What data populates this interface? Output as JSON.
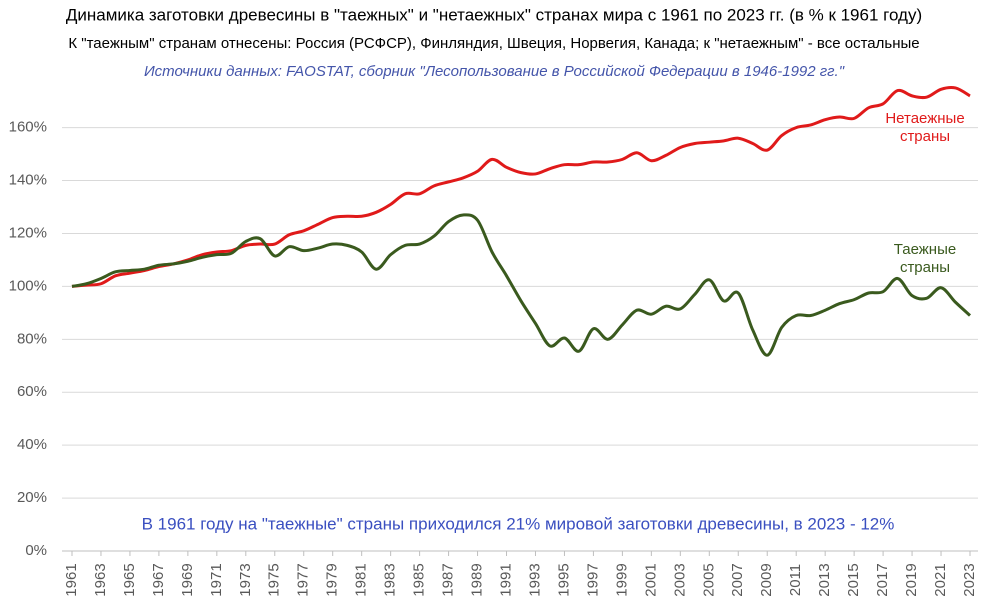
{
  "chart_data": {
    "type": "line",
    "title": "Динамика заготовки древесины в \"таежных\" и \"нетаежных\" странах мира с 1961 по 2023 гг. (в % к 1961 году)",
    "subtitle": "К \"таежным\" странам отнесены: Россия (РСФСР), Финляндия, Швеция, Норвегия, Канада; к \"нетаежным\" - все остальные",
    "source": "Источники данных: FAOSTAT, сборник \"Лесопользование в Российской Федерации в 1946-1992 гг.\"",
    "annotation": "В 1961 году на \"таежные\" страны приходился 21% мировой заготовки древесины, в 2023 - 12%",
    "x": [
      1961,
      1962,
      1963,
      1964,
      1965,
      1966,
      1967,
      1968,
      1969,
      1970,
      1971,
      1972,
      1973,
      1974,
      1975,
      1976,
      1977,
      1978,
      1979,
      1980,
      1981,
      1982,
      1983,
      1984,
      1985,
      1986,
      1987,
      1988,
      1989,
      1990,
      1991,
      1992,
      1993,
      1994,
      1995,
      1996,
      1997,
      1998,
      1999,
      2000,
      2001,
      2002,
      2003,
      2004,
      2005,
      2006,
      2007,
      2008,
      2009,
      2010,
      2011,
      2012,
      2013,
      2014,
      2015,
      2016,
      2017,
      2018,
      2019,
      2020,
      2021,
      2022,
      2023
    ],
    "series": [
      {
        "name": "Нетаежные страны",
        "color": "#e01a1a",
        "values": [
          100,
          100.5,
          101,
          104,
          105,
          106,
          107.5,
          108.5,
          110,
          112,
          113,
          113.5,
          115.5,
          116,
          116,
          119.5,
          121,
          123.5,
          126,
          126.5,
          126.5,
          128,
          131,
          135,
          135,
          138,
          139.5,
          141,
          143.5,
          148,
          145,
          143,
          142.5,
          144.5,
          146,
          146,
          147,
          147,
          148,
          150.5,
          147.5,
          149.5,
          152.5,
          154,
          154.5,
          155,
          156,
          154,
          151.5,
          157,
          160,
          161,
          163,
          164,
          163.5,
          167.5,
          169,
          174,
          172,
          171.5,
          174.5,
          175,
          172
        ]
      },
      {
        "name": "Таежные страны",
        "color": "#3a5a1e",
        "values": [
          100,
          101,
          103,
          105.5,
          106,
          106.5,
          108,
          108.5,
          109.5,
          111,
          112,
          112.5,
          117,
          118,
          111.5,
          115,
          113.5,
          114.5,
          116,
          115.5,
          113,
          106.5,
          112,
          115.5,
          116,
          119,
          124.5,
          127,
          125,
          113,
          104,
          94.5,
          86,
          77.5,
          80.5,
          75.5,
          84,
          80,
          85.5,
          91,
          89.5,
          92.5,
          91.5,
          97,
          102.5,
          94.5,
          97.5,
          83.5,
          74,
          84.5,
          89,
          89,
          91,
          93.5,
          95,
          97.5,
          98,
          103,
          96.5,
          95.5,
          99.5,
          94,
          89
        ]
      }
    ],
    "xlim": [
      1961,
      2023
    ],
    "xticks": [
      1961,
      1963,
      1965,
      1967,
      1969,
      1971,
      1973,
      1975,
      1977,
      1979,
      1981,
      1983,
      1985,
      1987,
      1989,
      1991,
      1993,
      1995,
      1997,
      1999,
      2001,
      2003,
      2005,
      2007,
      2009,
      2011,
      2013,
      2015,
      2017,
      2019,
      2021,
      2023
    ],
    "ylim": [
      0,
      178
    ],
    "yticks": [
      {
        "value": 0,
        "label": "0%"
      },
      {
        "value": 20,
        "label": "20%"
      },
      {
        "value": 40,
        "label": "40%"
      },
      {
        "value": 60,
        "label": "60%"
      },
      {
        "value": 80,
        "label": "80%"
      },
      {
        "value": 100,
        "label": "100%"
      },
      {
        "value": 120,
        "label": "120%"
      },
      {
        "value": 140,
        "label": "140%"
      },
      {
        "value": 160,
        "label": "160%"
      }
    ],
    "grid": true
  }
}
